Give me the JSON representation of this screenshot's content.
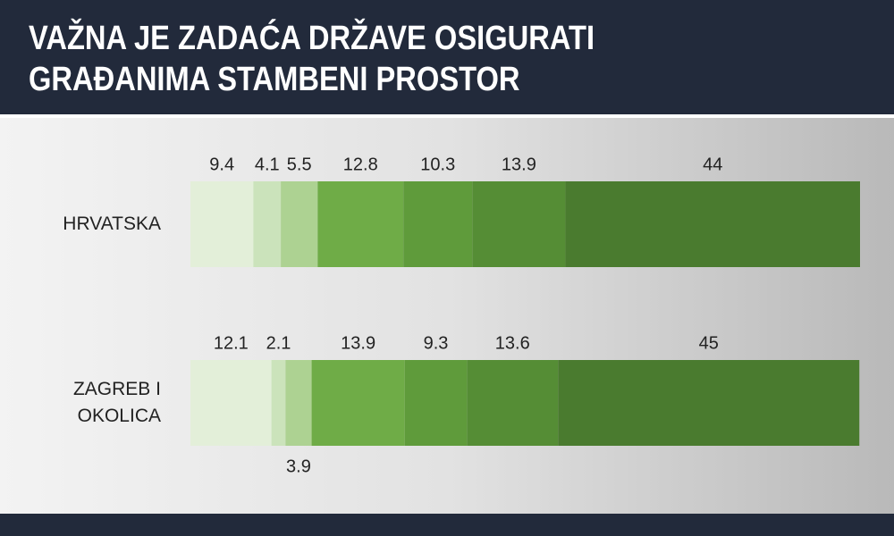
{
  "chart_data": {
    "type": "stacked-bar-horizontal",
    "title": [
      "VAŽNA JE ZADAĆA DRŽAVE OSIGURATI",
      "GRAĐANIMA STAMBENI PROSTOR"
    ],
    "categories": [
      "HRVATSKA",
      "ZAGREB I OKOLICA"
    ],
    "series": [
      {
        "color": "#e3efd9",
        "values": [
          9.4,
          12.1
        ]
      },
      {
        "color": "#cbe3bb",
        "values": [
          4.1,
          2.1
        ]
      },
      {
        "color": "#add292",
        "values": [
          5.5,
          3.9
        ]
      },
      {
        "color": "#6fac47",
        "values": [
          12.8,
          13.9
        ]
      },
      {
        "color": "#5f9b3b",
        "values": [
          10.3,
          9.3
        ]
      },
      {
        "color": "#558d35",
        "values": [
          13.9,
          13.6
        ]
      },
      {
        "color": "#4a7b2f",
        "values": [
          44,
          45
        ]
      }
    ],
    "xlim": [
      0,
      100
    ]
  }
}
